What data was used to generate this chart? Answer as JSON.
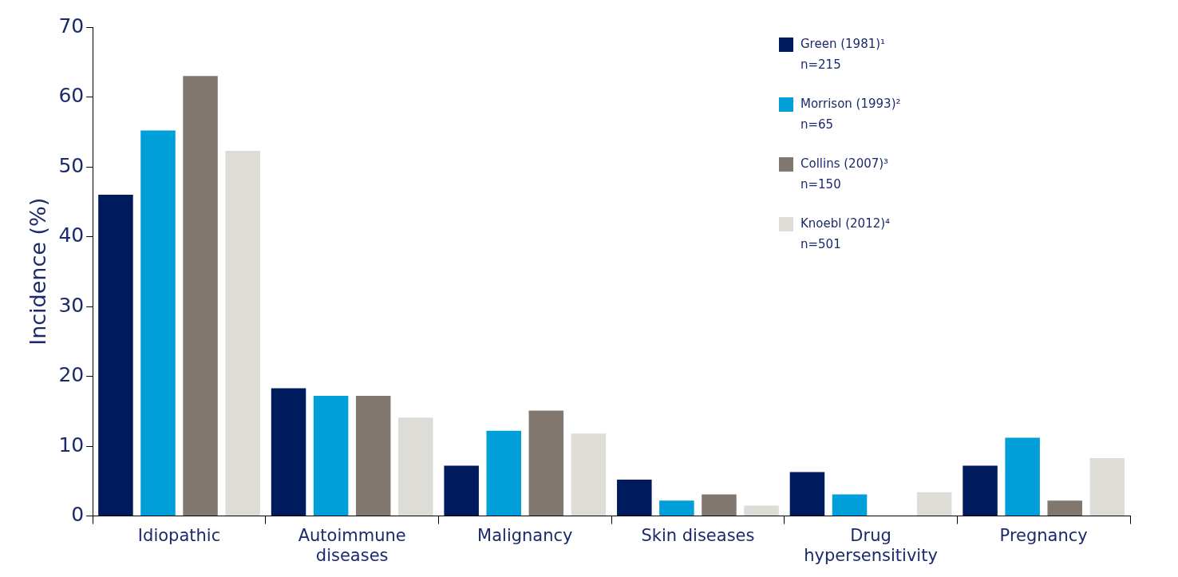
{
  "chart_data": {
    "type": "bar",
    "ylabel": "Incidence (%)",
    "categories": [
      "Idiopathic",
      "Autoimmune diseases",
      "Malignancy",
      "Skin diseases",
      "Drug hypersensitivity",
      "Pregnancy"
    ],
    "series": [
      {
        "name": "Green (1981)¹ n=215",
        "color": "#001a5e",
        "values": [
          46,
          18.3,
          7.2,
          5.2,
          6.3,
          7.2
        ]
      },
      {
        "name": "Morrison (1993)² n=65",
        "color": "#009fda",
        "values": [
          55.2,
          17.2,
          12.2,
          2.2,
          3.1,
          11.2
        ]
      },
      {
        "name": "Collins (2007)³ n=150",
        "color": "#82776e",
        "values": [
          63,
          17.2,
          15.1,
          3.1,
          null,
          2.2
        ]
      },
      {
        "name": "Knoebl (2012)⁴ n=501",
        "color": "#dddcd7",
        "values": [
          52.3,
          14.1,
          11.8,
          1.5,
          3.4,
          8.3
        ]
      }
    ],
    "ylim": [
      0,
      70
    ],
    "yticks": [
      0,
      10,
      20,
      30,
      40,
      50,
      60,
      70
    ],
    "grid": false,
    "legend": "top right"
  }
}
